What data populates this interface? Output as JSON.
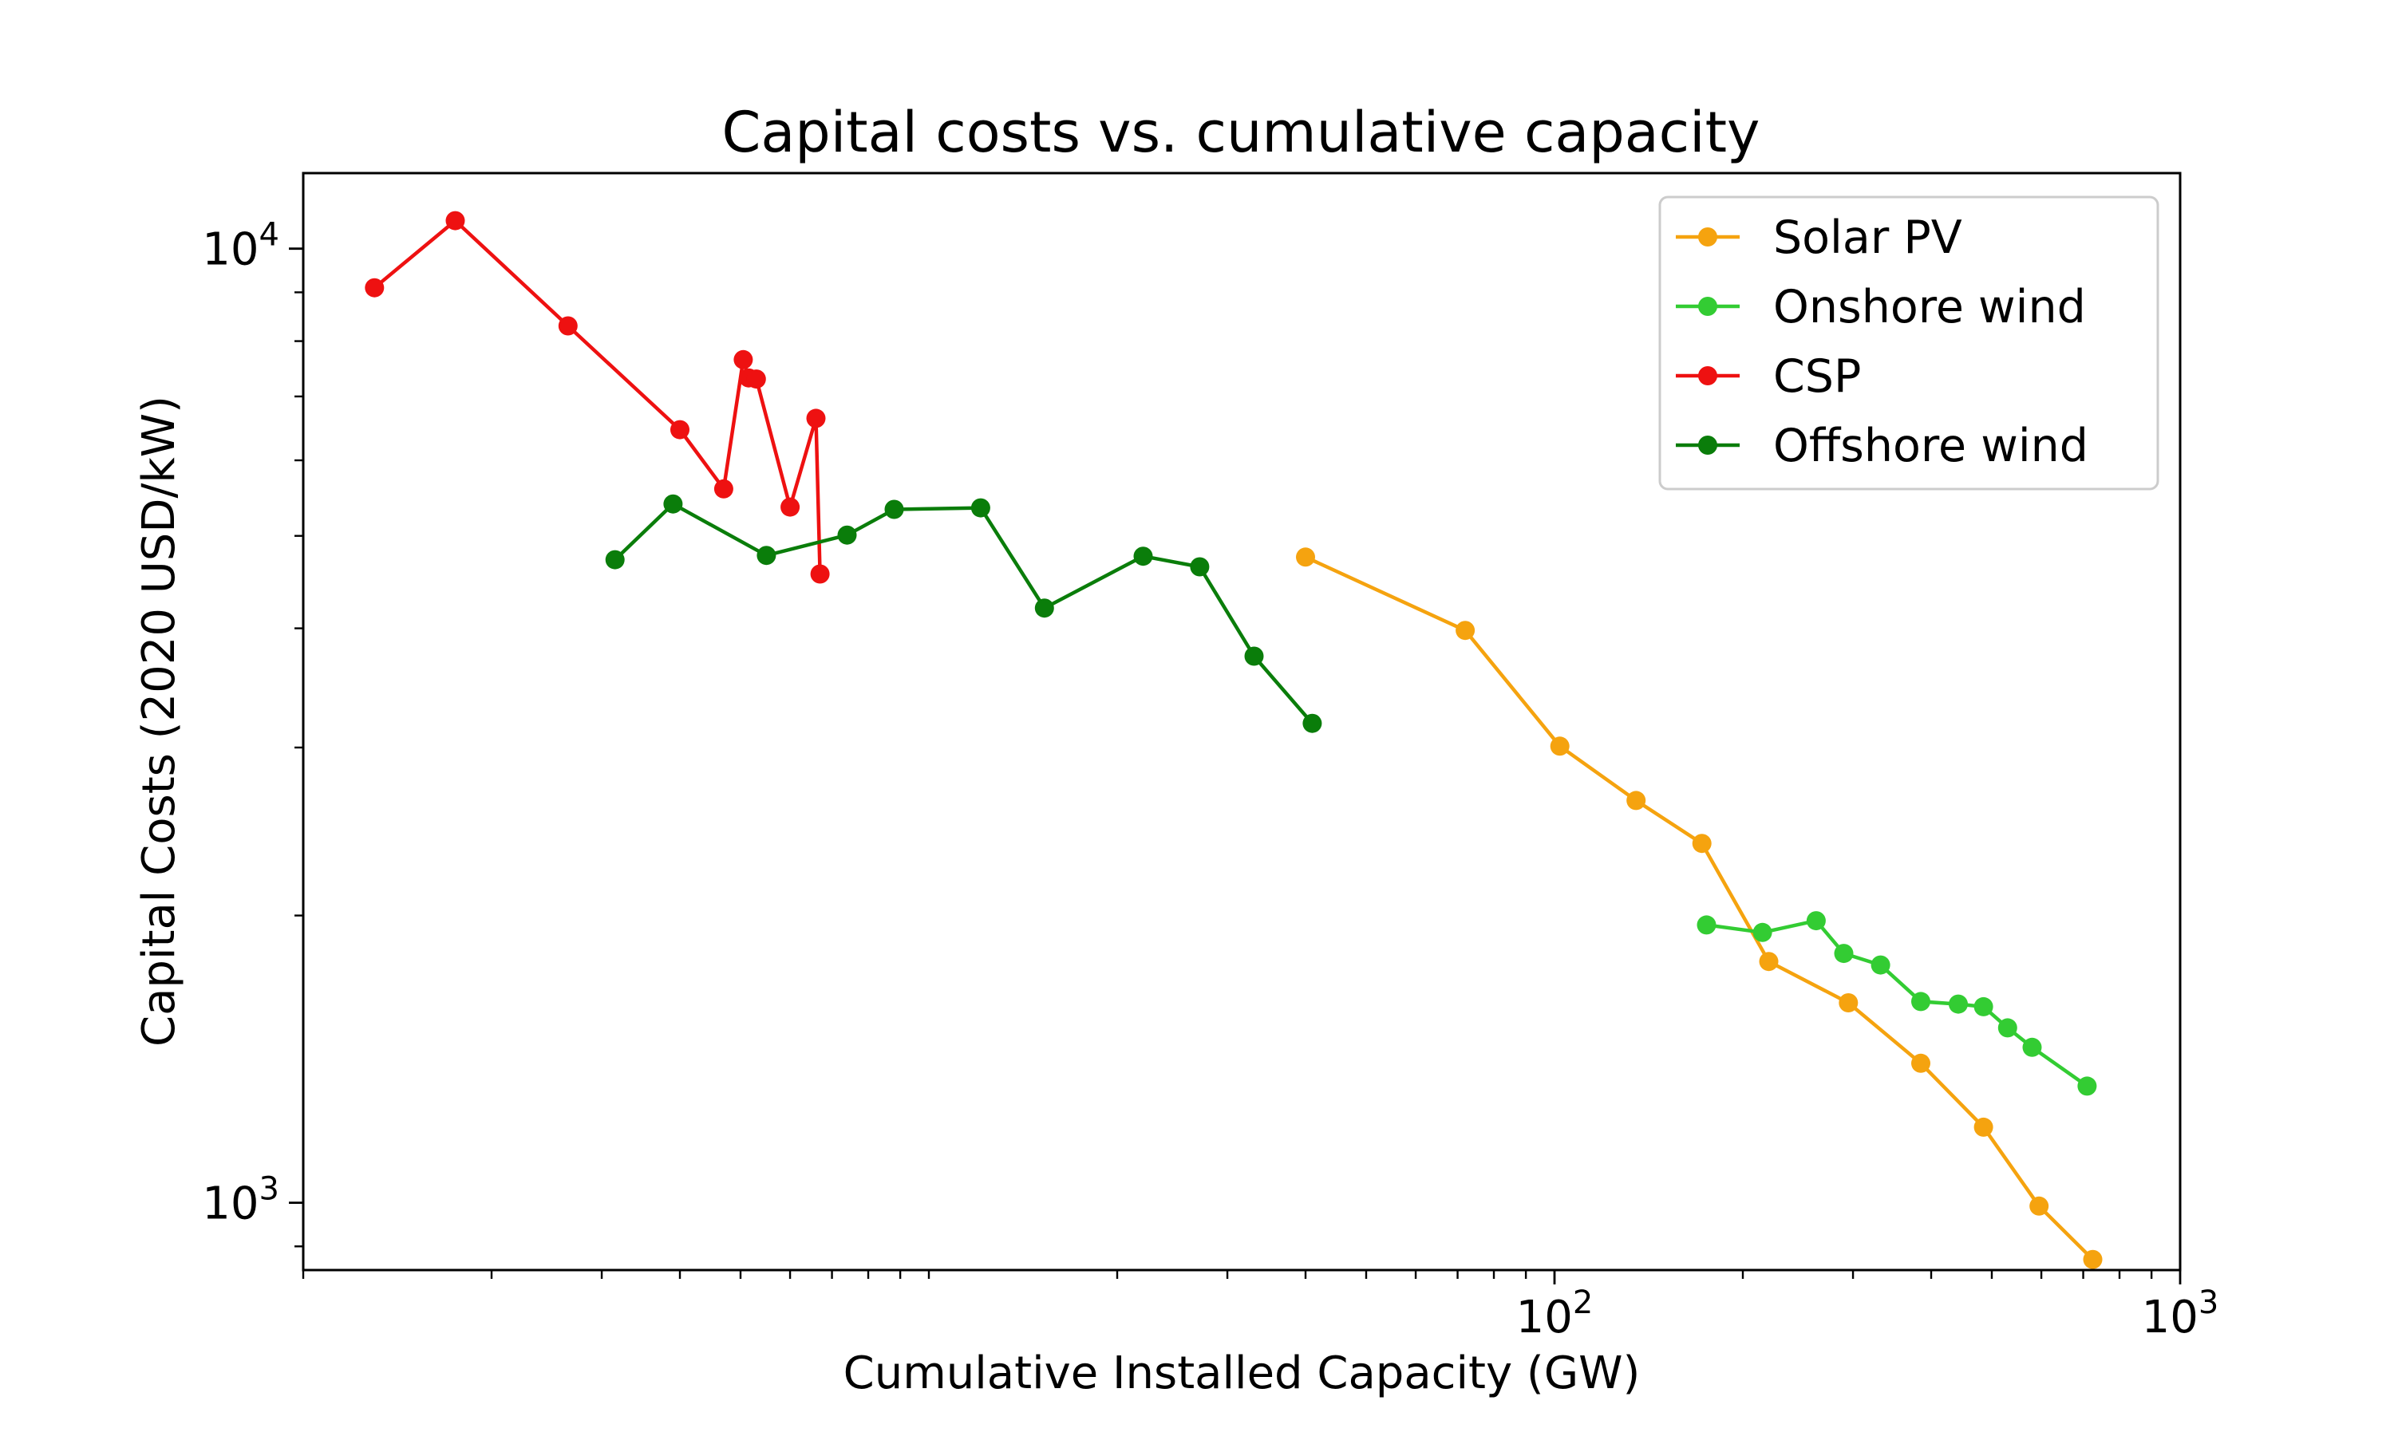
{
  "chart_data": {
    "type": "line",
    "title": "Capital costs vs. cumulative capacity",
    "xlabel": "Cumulative Installed Capacity (GW)",
    "ylabel": "Capital Costs (2020 USD/kW)",
    "xscale": "log",
    "yscale": "log",
    "xlim": [
      1,
      1000
    ],
    "ylim": [
      850,
      12000
    ],
    "x_ticks": [
      {
        "value": 100,
        "base": "10",
        "exp": "2"
      },
      {
        "value": 1000,
        "base": "10",
        "exp": "3"
      }
    ],
    "y_ticks": [
      {
        "value": 1000,
        "base": "10",
        "exp": "3"
      },
      {
        "value": 10000,
        "base": "10",
        "exp": "4"
      }
    ],
    "grid": false,
    "legend_position": "top-right",
    "series": [
      {
        "name": "Solar PV",
        "color": "#f5a30f",
        "x": [
          40,
          72,
          102,
          135,
          172,
          220,
          295,
          385,
          485,
          595,
          725
        ],
        "y": [
          4750,
          3980,
          3010,
          2640,
          2380,
          1790,
          1620,
          1400,
          1200,
          992,
          872
        ]
      },
      {
        "name": "Onshore wind",
        "color": "#33cc33",
        "x": [
          175,
          215,
          262,
          290,
          332,
          385,
          442,
          485,
          530,
          580,
          710
        ],
        "y": [
          1955,
          1920,
          1975,
          1825,
          1775,
          1625,
          1615,
          1605,
          1525,
          1455,
          1325
        ]
      },
      {
        "name": "CSP",
        "color": "#ee1111",
        "x": [
          1.3,
          1.75,
          2.65,
          4.0,
          4.7,
          5.05,
          5.15,
          5.3,
          6.0,
          6.6,
          6.7
        ],
        "y": [
          9100,
          10700,
          8300,
          6460,
          5600,
          7650,
          7320,
          7300,
          5360,
          6640,
          4560
        ]
      },
      {
        "name": "Offshore wind",
        "color": "#0a7d0a",
        "x": [
          3.15,
          3.9,
          5.5,
          7.4,
          8.8,
          12.1,
          15.3,
          22,
          27.1,
          33.1,
          41
        ],
        "y": [
          4720,
          5400,
          4770,
          5010,
          5330,
          5350,
          4200,
          4760,
          4640,
          3740,
          3180
        ]
      }
    ]
  }
}
